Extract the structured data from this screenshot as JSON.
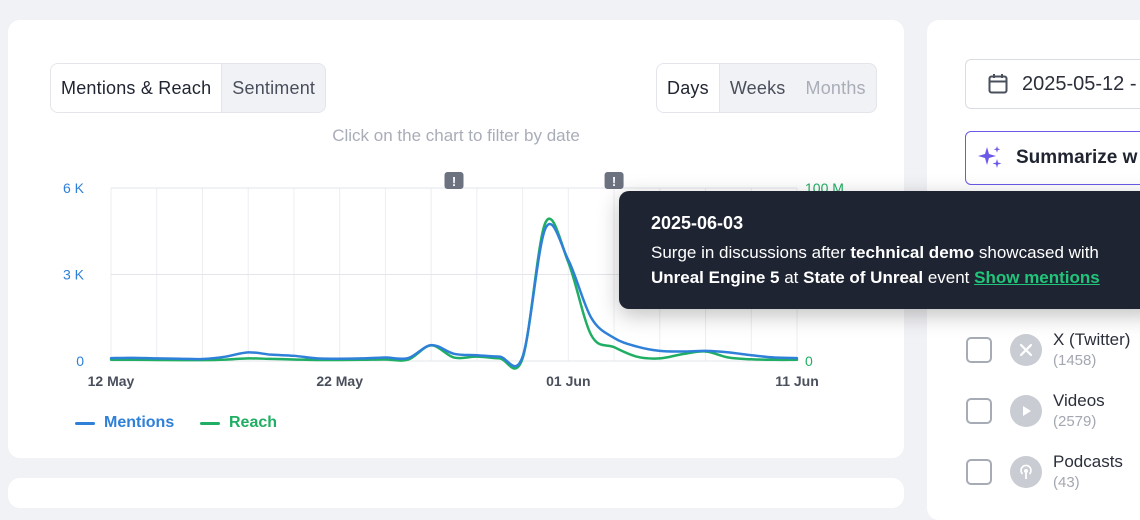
{
  "tabs": {
    "metric": [
      {
        "label": "Mentions & Reach",
        "active": true
      },
      {
        "label": "Sentiment",
        "active": false
      }
    ],
    "period": [
      {
        "label": "Days",
        "active": true,
        "disabled": false
      },
      {
        "label": "Weeks",
        "active": false,
        "disabled": false
      },
      {
        "label": "Months",
        "active": false,
        "disabled": true
      }
    ]
  },
  "hint": "Click on the chart to filter by date",
  "chart_data": {
    "type": "line",
    "x_tick_labels": [
      "12 May",
      "22 May",
      "01 Jun",
      "11 Jun"
    ],
    "x": [
      "05-12",
      "05-13",
      "05-14",
      "05-15",
      "05-16",
      "05-17",
      "05-18",
      "05-19",
      "05-20",
      "05-21",
      "05-22",
      "05-23",
      "05-24",
      "05-25",
      "05-26",
      "05-27",
      "05-28",
      "05-29",
      "05-30",
      "05-31",
      "06-01",
      "06-02",
      "06-03",
      "06-04",
      "06-05",
      "06-06",
      "06-07",
      "06-08",
      "06-09",
      "06-10",
      "06-11"
    ],
    "y_left_ticks": [
      "0",
      "3 K",
      "6 K"
    ],
    "y_left_range": [
      0,
      6000
    ],
    "y_right_ticks": [
      "0",
      "100 M"
    ],
    "y_right_range": [
      0,
      100000000
    ],
    "grid": true,
    "legend_position": "bottom-left",
    "series": [
      {
        "name": "Mentions",
        "axis": "left",
        "color": "#2f80d8",
        "values": [
          100,
          110,
          90,
          80,
          70,
          150,
          300,
          220,
          180,
          90,
          80,
          90,
          120,
          100,
          550,
          250,
          200,
          150,
          150,
          4600,
          3500,
          1500,
          800,
          500,
          350,
          330,
          350,
          300,
          200,
          120,
          100
        ]
      },
      {
        "name": "Reach",
        "axis": "right",
        "color": "#1fae63",
        "values": [
          700000,
          700000,
          600000,
          500000,
          500000,
          800000,
          1500000,
          1200000,
          900000,
          600000,
          600000,
          700000,
          900000,
          800000,
          9000000,
          2000000,
          2500000,
          1500000,
          1500000,
          80000000,
          57000000,
          15000000,
          8000000,
          2500000,
          1500000,
          4000000,
          5500000,
          2000000,
          1000000,
          700000,
          700000
        ]
      }
    ],
    "annotations": [
      {
        "x": "05-27",
        "icon": "alert-marker-icon"
      },
      {
        "x": "06-03",
        "icon": "alert-marker-icon"
      }
    ]
  },
  "tooltip": {
    "date": "2025-06-03",
    "parts": [
      {
        "t": "Surge in discussions after ",
        "b": false
      },
      {
        "t": "technical demo",
        "b": true
      },
      {
        "t": " showcased with",
        "b": false
      },
      {
        "br": true
      },
      {
        "t": "Unreal Engine 5",
        "b": true
      },
      {
        "t": " at ",
        "b": false
      },
      {
        "t": "State of Unreal",
        "b": true
      },
      {
        "t": " event ",
        "b": false
      }
    ],
    "link": "Show mentions"
  },
  "sidebar": {
    "date_range": "2025-05-12 -",
    "summarize_label": "Summarize w",
    "sources": [
      {
        "name": "X (Twitter)",
        "count": "(1458)",
        "icon": "x-twitter-icon"
      },
      {
        "name": "Videos",
        "count": "(2579)",
        "icon": "play-icon"
      },
      {
        "name": "Podcasts",
        "count": "(43)",
        "icon": "podcast-icon"
      }
    ]
  },
  "colors": {
    "mentions": "#2f80d8",
    "reach": "#1fae63",
    "tooltip_bg": "#1f2433",
    "link": "#21c57a",
    "accent": "#6a5ae8"
  }
}
